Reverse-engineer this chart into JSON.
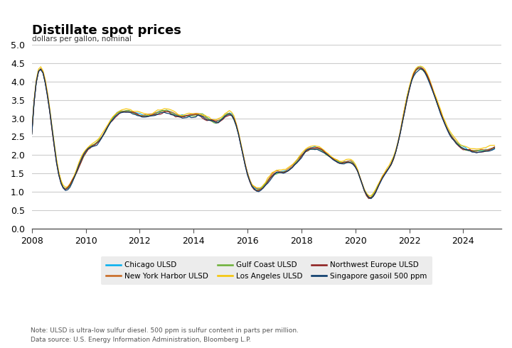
{
  "title": "Distillate spot prices",
  "ylabel": "dollars per gallon, nominal",
  "note": "Note: ULSD is ultra-low sulfur diesel. 500 ppm is sulfur content in parts per million.",
  "source": "Data source: U.S. Energy Information Administration, Bloomberg L.P.",
  "ylim": [
    0.0,
    5.0
  ],
  "yticks": [
    0.0,
    0.5,
    1.0,
    1.5,
    2.0,
    2.5,
    3.0,
    3.5,
    4.0,
    4.5,
    5.0
  ],
  "series": [
    {
      "label": "Chicago ULSD",
      "color": "#00AEEF"
    },
    {
      "label": "New York Harbor ULSD",
      "color": "#C8651B"
    },
    {
      "label": "Gulf Coast ULSD",
      "color": "#6AAF35"
    },
    {
      "label": "Los Angeles ULSD",
      "color": "#F5C400"
    },
    {
      "label": "Northwest Europe ULSD",
      "color": "#8B1A1A"
    },
    {
      "label": "Singapore gasoil 500 ppm",
      "color": "#003366"
    }
  ],
  "background_color": "#FFFFFF",
  "grid_color": "#CCCCCC",
  "legend_bg": "#E8E8E8",
  "title_fontsize": 13,
  "label_fontsize": 8,
  "tick_fontsize": 9
}
